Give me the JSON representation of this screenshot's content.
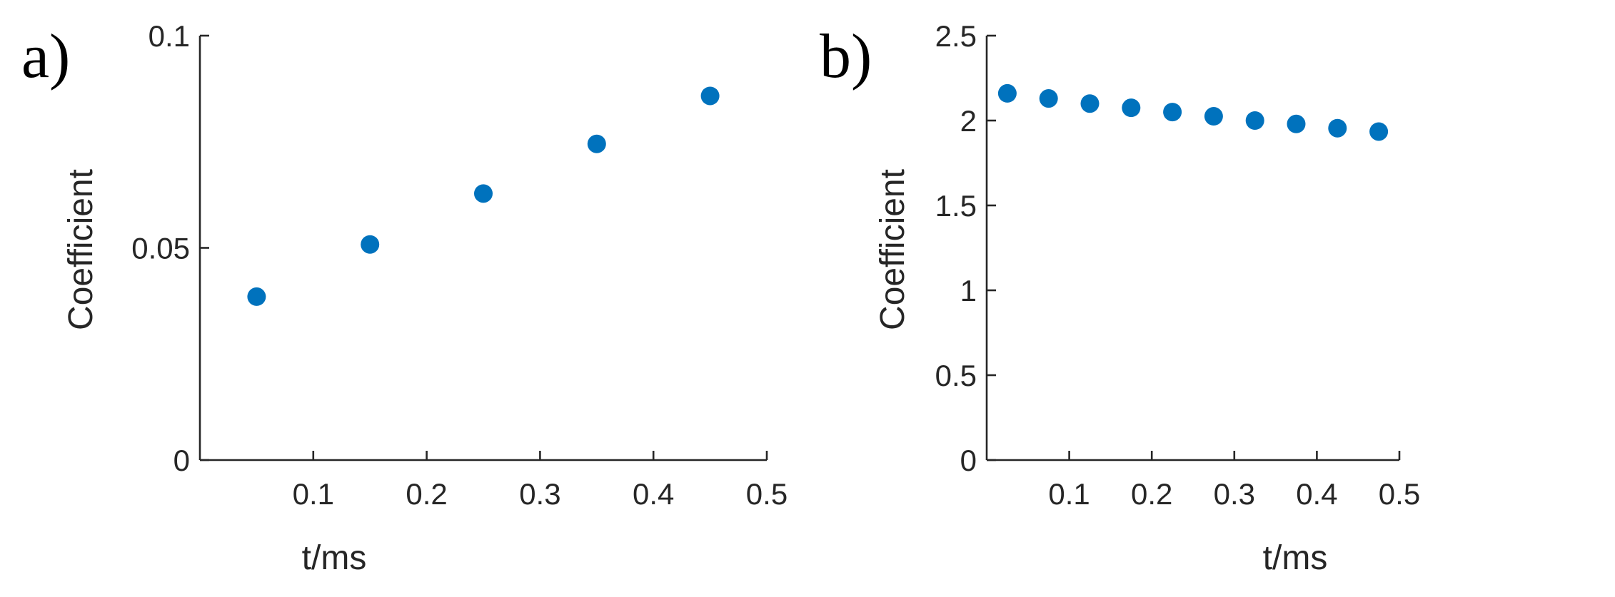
{
  "chart_data": [
    {
      "type": "scatter",
      "panel_label": "a)",
      "title": "",
      "xlabel": "t/ms",
      "ylabel": "Coefficient",
      "xlim": [
        0,
        0.5
      ],
      "ylim": [
        0,
        0.1
      ],
      "xticks": [
        0.1,
        0.2,
        0.3,
        0.4,
        0.5
      ],
      "xtick_labels": [
        "0.1",
        "0.2",
        "0.3",
        "0.4",
        "0.5"
      ],
      "yticks": [
        0,
        0.05,
        0.1
      ],
      "ytick_labels": [
        "0",
        "0.05",
        "0.1"
      ],
      "grid": false,
      "marker_color": "#0072BD",
      "series": [
        {
          "x": [
            0.05,
            0.15,
            0.25,
            0.35,
            0.45
          ],
          "y": [
            0.0385,
            0.0508,
            0.0628,
            0.0745,
            0.0858
          ]
        }
      ]
    },
    {
      "type": "scatter",
      "panel_label": "b)",
      "title": "",
      "xlabel": "t/ms",
      "ylabel": "Coefficient",
      "xlim": [
        0,
        0.5
      ],
      "ylim": [
        0,
        2.5
      ],
      "xticks": [
        0.1,
        0.2,
        0.3,
        0.4,
        0.5
      ],
      "xtick_labels": [
        "0.1",
        "0.2",
        "0.3",
        "0.4",
        "0.5"
      ],
      "yticks": [
        0,
        0.5,
        1,
        1.5,
        2,
        2.5
      ],
      "ytick_labels": [
        "0",
        "0.5",
        "1",
        "1.5",
        "2",
        "2.5"
      ],
      "grid": false,
      "marker_color": "#0072BD",
      "series": [
        {
          "x": [
            0.025,
            0.075,
            0.125,
            0.175,
            0.225,
            0.275,
            0.325,
            0.375,
            0.425,
            0.475
          ],
          "y": [
            2.16,
            2.13,
            2.1,
            2.075,
            2.05,
            2.025,
            2.0,
            1.98,
            1.955,
            1.935
          ]
        }
      ]
    }
  ]
}
